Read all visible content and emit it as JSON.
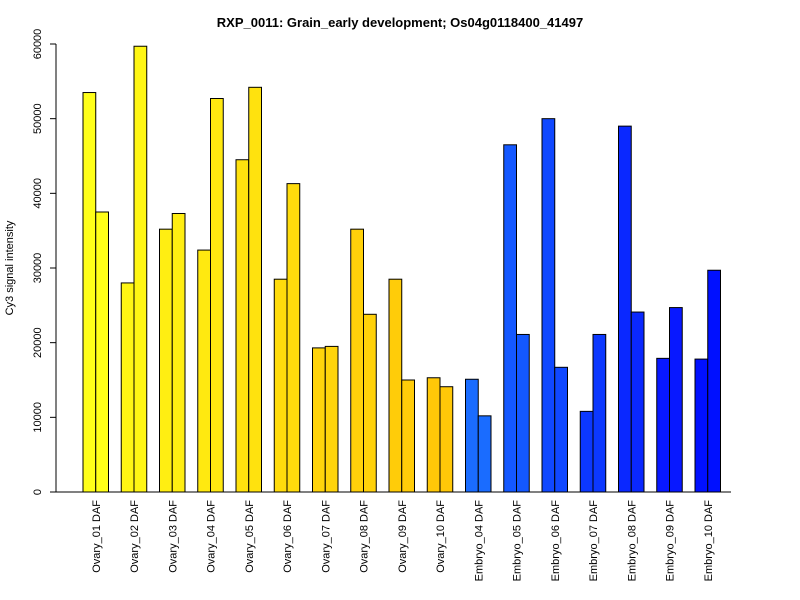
{
  "chart_data": {
    "type": "bar",
    "title": "RXP_0011: Grain_early development; Os04g0118400_41497",
    "xlabel": "",
    "ylabel": "Cy3 signal intensity",
    "ylim": [
      0,
      60000
    ],
    "yticks": [
      0,
      10000,
      20000,
      30000,
      40000,
      50000,
      60000
    ],
    "grid": false,
    "categories": [
      "Ovary_01 DAF",
      "Ovary_02 DAF",
      "Ovary_03 DAF",
      "Ovary_04 DAF",
      "Ovary_05 DAF",
      "Ovary_06 DAF",
      "Ovary_07 DAF",
      "Ovary_08 DAF",
      "Ovary_09 DAF",
      "Ovary_10 DAF",
      "Embryo_04 DAF",
      "Embryo_05 DAF",
      "Embryo_06 DAF",
      "Embryo_07 DAF",
      "Embryo_08 DAF",
      "Embryo_09 DAF",
      "Embryo_10 DAF"
    ],
    "series": [
      {
        "values": [
          53500,
          28000,
          35200,
          32400,
          44500,
          28500,
          19300,
          35200,
          28500,
          15300,
          15100,
          46500,
          50000,
          10800,
          49000,
          17900,
          17800
        ]
      },
      {
        "values": [
          37500,
          59700,
          37300,
          52700,
          54200,
          41300,
          19500,
          23800,
          15000,
          14100,
          10200,
          21100,
          16700,
          21100,
          24100,
          24700,
          29700
        ]
      }
    ],
    "colors": [
      "#FFFF19",
      "#FFF614",
      "#FFEE12",
      "#FFE910",
      "#FFE20E",
      "#FFDC0C",
      "#FFD40B",
      "#FFD10A",
      "#FFCC09",
      "#FFC808",
      "#1A6CFF",
      "#1458FF",
      "#1048FF",
      "#0C38FF",
      "#0A28FF",
      "#0818FF",
      "#0010FF"
    ]
  }
}
